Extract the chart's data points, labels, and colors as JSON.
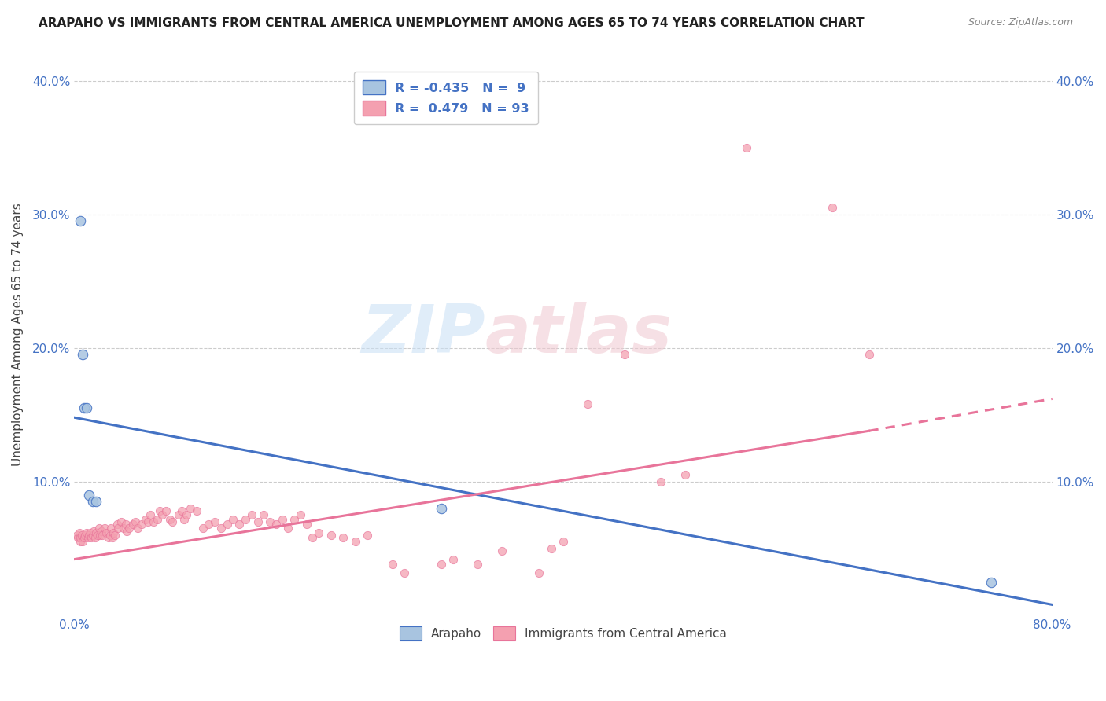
{
  "title": "ARAPAHO VS IMMIGRANTS FROM CENTRAL AMERICA UNEMPLOYMENT AMONG AGES 65 TO 74 YEARS CORRELATION CHART",
  "source": "Source: ZipAtlas.com",
  "ylabel": "Unemployment Among Ages 65 to 74 years",
  "xlim": [
    0.0,
    0.8
  ],
  "ylim": [
    0.0,
    0.42
  ],
  "yticks": [
    0.0,
    0.1,
    0.2,
    0.3,
    0.4
  ],
  "ytick_labels": [
    "",
    "10.0%",
    "20.0%",
    "30.0%",
    "40.0%"
  ],
  "xticks": [
    0.0,
    0.1,
    0.2,
    0.3,
    0.4,
    0.5,
    0.6,
    0.7,
    0.8
  ],
  "xtick_labels": [
    "0.0%",
    "",
    "",
    "",
    "",
    "",
    "",
    "",
    "80.0%"
  ],
  "background_color": "#ffffff",
  "grid_color": "#cccccc",
  "watermark_zip": "ZIP",
  "watermark_atlas": "atlas",
  "arapaho_color": "#a8c4e0",
  "immigrant_color": "#f4a0b0",
  "arapaho_line_color": "#4472c4",
  "immigrant_line_color": "#e8749a",
  "arapaho_scatter": [
    [
      0.005,
      0.295
    ],
    [
      0.007,
      0.195
    ],
    [
      0.008,
      0.155
    ],
    [
      0.01,
      0.155
    ],
    [
      0.012,
      0.09
    ],
    [
      0.015,
      0.085
    ],
    [
      0.018,
      0.085
    ],
    [
      0.3,
      0.08
    ],
    [
      0.75,
      0.025
    ]
  ],
  "immigrant_scatter": [
    [
      0.002,
      0.06
    ],
    [
      0.003,
      0.058
    ],
    [
      0.004,
      0.062
    ],
    [
      0.005,
      0.055
    ],
    [
      0.005,
      0.058
    ],
    [
      0.006,
      0.06
    ],
    [
      0.007,
      0.055
    ],
    [
      0.008,
      0.058
    ],
    [
      0.009,
      0.06
    ],
    [
      0.01,
      0.062
    ],
    [
      0.011,
      0.058
    ],
    [
      0.012,
      0.06
    ],
    [
      0.013,
      0.062
    ],
    [
      0.014,
      0.058
    ],
    [
      0.015,
      0.06
    ],
    [
      0.016,
      0.063
    ],
    [
      0.017,
      0.058
    ],
    [
      0.018,
      0.062
    ],
    [
      0.019,
      0.06
    ],
    [
      0.02,
      0.065
    ],
    [
      0.021,
      0.06
    ],
    [
      0.022,
      0.063
    ],
    [
      0.023,
      0.06
    ],
    [
      0.025,
      0.065
    ],
    [
      0.026,
      0.062
    ],
    [
      0.028,
      0.058
    ],
    [
      0.029,
      0.06
    ],
    [
      0.03,
      0.065
    ],
    [
      0.031,
      0.058
    ],
    [
      0.032,
      0.062
    ],
    [
      0.033,
      0.06
    ],
    [
      0.035,
      0.068
    ],
    [
      0.036,
      0.065
    ],
    [
      0.038,
      0.07
    ],
    [
      0.04,
      0.065
    ],
    [
      0.042,
      0.068
    ],
    [
      0.043,
      0.063
    ],
    [
      0.045,
      0.065
    ],
    [
      0.048,
      0.068
    ],
    [
      0.05,
      0.07
    ],
    [
      0.052,
      0.065
    ],
    [
      0.055,
      0.068
    ],
    [
      0.058,
      0.072
    ],
    [
      0.06,
      0.07
    ],
    [
      0.062,
      0.075
    ],
    [
      0.065,
      0.07
    ],
    [
      0.068,
      0.072
    ],
    [
      0.07,
      0.078
    ],
    [
      0.072,
      0.075
    ],
    [
      0.075,
      0.078
    ],
    [
      0.078,
      0.072
    ],
    [
      0.08,
      0.07
    ],
    [
      0.085,
      0.075
    ],
    [
      0.088,
      0.078
    ],
    [
      0.09,
      0.072
    ],
    [
      0.092,
      0.075
    ],
    [
      0.095,
      0.08
    ],
    [
      0.1,
      0.078
    ],
    [
      0.105,
      0.065
    ],
    [
      0.11,
      0.068
    ],
    [
      0.115,
      0.07
    ],
    [
      0.12,
      0.065
    ],
    [
      0.125,
      0.068
    ],
    [
      0.13,
      0.072
    ],
    [
      0.135,
      0.068
    ],
    [
      0.14,
      0.072
    ],
    [
      0.145,
      0.075
    ],
    [
      0.15,
      0.07
    ],
    [
      0.155,
      0.075
    ],
    [
      0.16,
      0.07
    ],
    [
      0.165,
      0.068
    ],
    [
      0.17,
      0.072
    ],
    [
      0.175,
      0.065
    ],
    [
      0.18,
      0.072
    ],
    [
      0.185,
      0.075
    ],
    [
      0.19,
      0.068
    ],
    [
      0.195,
      0.058
    ],
    [
      0.2,
      0.062
    ],
    [
      0.21,
      0.06
    ],
    [
      0.22,
      0.058
    ],
    [
      0.23,
      0.055
    ],
    [
      0.24,
      0.06
    ],
    [
      0.26,
      0.038
    ],
    [
      0.27,
      0.032
    ],
    [
      0.3,
      0.038
    ],
    [
      0.31,
      0.042
    ],
    [
      0.33,
      0.038
    ],
    [
      0.35,
      0.048
    ],
    [
      0.38,
      0.032
    ],
    [
      0.39,
      0.05
    ],
    [
      0.4,
      0.055
    ],
    [
      0.42,
      0.158
    ],
    [
      0.45,
      0.195
    ],
    [
      0.48,
      0.1
    ],
    [
      0.5,
      0.105
    ],
    [
      0.55,
      0.35
    ],
    [
      0.62,
      0.305
    ],
    [
      0.65,
      0.195
    ]
  ],
  "arapaho_trendline": [
    [
      0.0,
      0.148
    ],
    [
      0.8,
      0.008
    ]
  ],
  "immigrant_trendline_solid": [
    [
      0.0,
      0.042
    ],
    [
      0.65,
      0.138
    ]
  ],
  "immigrant_trendline_dash": [
    [
      0.65,
      0.138
    ],
    [
      0.8,
      0.162
    ]
  ]
}
